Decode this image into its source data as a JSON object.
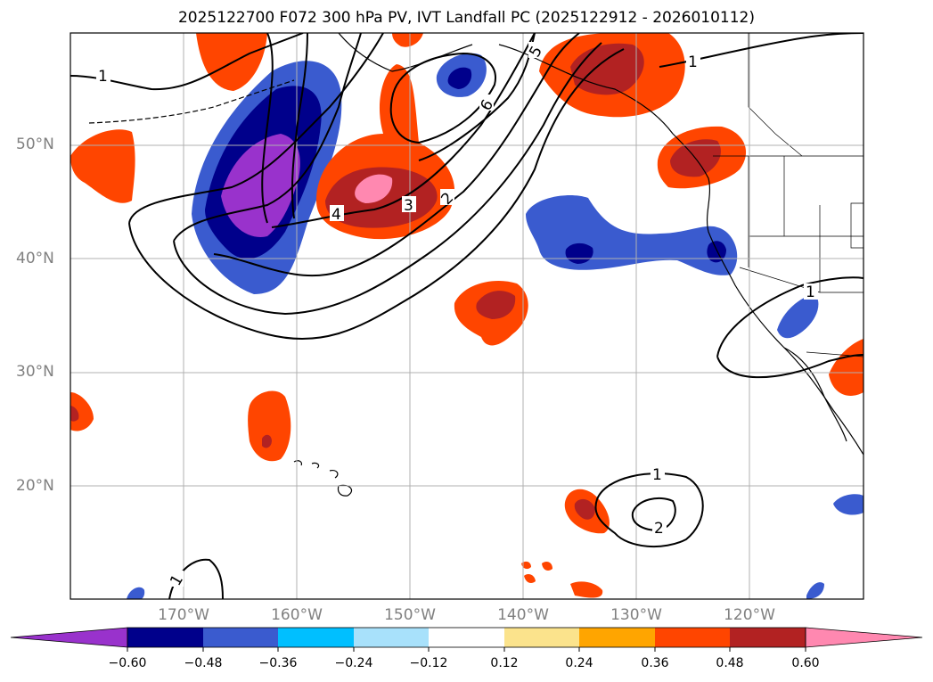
{
  "title": "2025122700 F072 300 hPa PV, IVT Landfall PC (2025122912 - 2026010112)",
  "map": {
    "lon_range": [
      -180,
      -110
    ],
    "lat_range": [
      10,
      60
    ],
    "gridlines": true,
    "lat_ticks": [
      "20°N",
      "30°N",
      "40°N",
      "50°N"
    ],
    "lon_ticks": [
      "170°W",
      "160°W",
      "150°W",
      "140°W",
      "130°W",
      "120°W"
    ],
    "contour_labels": [
      "1",
      "1",
      "1",
      "1",
      "1",
      "1",
      "2",
      "2",
      "3",
      "4",
      "5",
      "6"
    ]
  },
  "colorbar": {
    "ticks": [
      "−0.60",
      "−0.48",
      "−0.36",
      "−0.24",
      "−0.12",
      "0.12",
      "0.24",
      "0.36",
      "0.48",
      "0.60"
    ],
    "colors": [
      "#9932cc",
      "#00008b",
      "#3a5bcf",
      "#00bfff",
      "#a8e1fb",
      "#ffffff",
      "#fbe38c",
      "#ffa500",
      "#ff4500",
      "#b22222",
      "#ff88b0"
    ]
  }
}
